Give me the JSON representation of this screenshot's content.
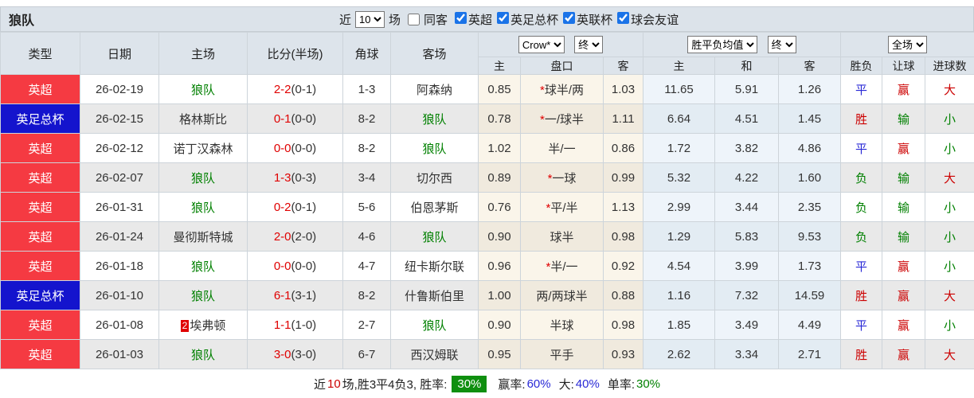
{
  "title": "狼队",
  "controls": {
    "recent_label": "近",
    "recent_value": "10",
    "matches_label": "场",
    "same_venue_label": "同客",
    "same_venue_checked": false,
    "leagues": [
      {
        "label": "英超",
        "checked": true
      },
      {
        "label": "英足总杯",
        "checked": true
      },
      {
        "label": "英联杯",
        "checked": true
      },
      {
        "label": "球会友谊",
        "checked": true
      }
    ]
  },
  "table": {
    "headers": {
      "type": "类型",
      "date": "日期",
      "home": "主场",
      "score": "比分(半场)",
      "corners": "角球",
      "away": "客场",
      "odds_company": "Crow*",
      "odds_final": "终",
      "odds_home": "主",
      "odds_handicap": "盘口",
      "odds_away": "客",
      "avg_select": "胜平负均值",
      "avg_final": "终",
      "avg_home": "主",
      "avg_draw": "和",
      "avg_away": "客",
      "scope_select": "全场",
      "result": "胜负",
      "handicap_result": "让球",
      "goals_result": "进球数"
    },
    "rows": [
      {
        "type": "英超",
        "type_color": "red",
        "date": "26-02-19",
        "home": {
          "name": "狼队",
          "wolves": true,
          "badge": ""
        },
        "score": {
          "main": "2-2",
          "half": "(0-1)"
        },
        "corners": "1-3",
        "away": {
          "name": "阿森纳",
          "wolves": false,
          "badge": ""
        },
        "odds_home": "0.85",
        "handicap": {
          "star": true,
          "text": "球半/两"
        },
        "odds_away": "1.03",
        "avg_home": "11.65",
        "avg_draw": "5.91",
        "avg_away": "1.26",
        "result": {
          "text": "平",
          "color": "blue"
        },
        "handicap_result": {
          "text": "赢",
          "color": "red"
        },
        "goals": {
          "text": "大",
          "color": "red"
        }
      },
      {
        "type": "英足总杯",
        "type_color": "blue",
        "date": "26-02-15",
        "home": {
          "name": "格林斯比",
          "wolves": false,
          "badge": ""
        },
        "score": {
          "main": "0-1",
          "half": "(0-0)"
        },
        "corners": "8-2",
        "away": {
          "name": "狼队",
          "wolves": true,
          "badge": ""
        },
        "odds_home": "0.78",
        "handicap": {
          "star": true,
          "text": "一/球半"
        },
        "odds_away": "1.11",
        "avg_home": "6.64",
        "avg_draw": "4.51",
        "avg_away": "1.45",
        "result": {
          "text": "胜",
          "color": "red"
        },
        "handicap_result": {
          "text": "输",
          "color": "green"
        },
        "goals": {
          "text": "小",
          "color": "green"
        }
      },
      {
        "type": "英超",
        "type_color": "red",
        "date": "26-02-12",
        "home": {
          "name": "诺丁汉森林",
          "wolves": false,
          "badge": ""
        },
        "score": {
          "main": "0-0",
          "half": "(0-0)"
        },
        "corners": "8-2",
        "away": {
          "name": "狼队",
          "wolves": true,
          "badge": ""
        },
        "odds_home": "1.02",
        "handicap": {
          "star": false,
          "text": "半/一"
        },
        "odds_away": "0.86",
        "avg_home": "1.72",
        "avg_draw": "3.82",
        "avg_away": "4.86",
        "result": {
          "text": "平",
          "color": "blue"
        },
        "handicap_result": {
          "text": "赢",
          "color": "red"
        },
        "goals": {
          "text": "小",
          "color": "green"
        }
      },
      {
        "type": "英超",
        "type_color": "red",
        "date": "26-02-07",
        "home": {
          "name": "狼队",
          "wolves": true,
          "badge": ""
        },
        "score": {
          "main": "1-3",
          "half": "(0-3)"
        },
        "corners": "3-4",
        "away": {
          "name": "切尔西",
          "wolves": false,
          "badge": ""
        },
        "odds_home": "0.89",
        "handicap": {
          "star": true,
          "text": "一球"
        },
        "odds_away": "0.99",
        "avg_home": "5.32",
        "avg_draw": "4.22",
        "avg_away": "1.60",
        "result": {
          "text": "负",
          "color": "green"
        },
        "handicap_result": {
          "text": "输",
          "color": "green"
        },
        "goals": {
          "text": "大",
          "color": "red"
        }
      },
      {
        "type": "英超",
        "type_color": "red",
        "date": "26-01-31",
        "home": {
          "name": "狼队",
          "wolves": true,
          "badge": ""
        },
        "score": {
          "main": "0-2",
          "half": "(0-1)"
        },
        "corners": "5-6",
        "away": {
          "name": "伯恩茅斯",
          "wolves": false,
          "badge": ""
        },
        "odds_home": "0.76",
        "handicap": {
          "star": true,
          "text": "平/半"
        },
        "odds_away": "1.13",
        "avg_home": "2.99",
        "avg_draw": "3.44",
        "avg_away": "2.35",
        "result": {
          "text": "负",
          "color": "green"
        },
        "handicap_result": {
          "text": "输",
          "color": "green"
        },
        "goals": {
          "text": "小",
          "color": "green"
        }
      },
      {
        "type": "英超",
        "type_color": "red",
        "date": "26-01-24",
        "home": {
          "name": "曼彻斯特城",
          "wolves": false,
          "badge": ""
        },
        "score": {
          "main": "2-0",
          "half": "(2-0)"
        },
        "corners": "4-6",
        "away": {
          "name": "狼队",
          "wolves": true,
          "badge": ""
        },
        "odds_home": "0.90",
        "handicap": {
          "star": false,
          "text": "球半"
        },
        "odds_away": "0.98",
        "avg_home": "1.29",
        "avg_draw": "5.83",
        "avg_away": "9.53",
        "result": {
          "text": "负",
          "color": "green"
        },
        "handicap_result": {
          "text": "输",
          "color": "green"
        },
        "goals": {
          "text": "小",
          "color": "green"
        }
      },
      {
        "type": "英超",
        "type_color": "red",
        "date": "26-01-18",
        "home": {
          "name": "狼队",
          "wolves": true,
          "badge": ""
        },
        "score": {
          "main": "0-0",
          "half": "(0-0)"
        },
        "corners": "4-7",
        "away": {
          "name": "纽卡斯尔联",
          "wolves": false,
          "badge": ""
        },
        "odds_home": "0.96",
        "handicap": {
          "star": true,
          "text": "半/一"
        },
        "odds_away": "0.92",
        "avg_home": "4.54",
        "avg_draw": "3.99",
        "avg_away": "1.73",
        "result": {
          "text": "平",
          "color": "blue"
        },
        "handicap_result": {
          "text": "赢",
          "color": "red"
        },
        "goals": {
          "text": "小",
          "color": "green"
        }
      },
      {
        "type": "英足总杯",
        "type_color": "blue",
        "date": "26-01-10",
        "home": {
          "name": "狼队",
          "wolves": true,
          "badge": ""
        },
        "score": {
          "main": "6-1",
          "half": "(3-1)"
        },
        "corners": "8-2",
        "away": {
          "name": "什鲁斯伯里",
          "wolves": false,
          "badge": ""
        },
        "odds_home": "1.00",
        "handicap": {
          "star": false,
          "text": "两/两球半"
        },
        "odds_away": "0.88",
        "avg_home": "1.16",
        "avg_draw": "7.32",
        "avg_away": "14.59",
        "result": {
          "text": "胜",
          "color": "red"
        },
        "handicap_result": {
          "text": "赢",
          "color": "red"
        },
        "goals": {
          "text": "大",
          "color": "red"
        }
      },
      {
        "type": "英超",
        "type_color": "red",
        "date": "26-01-08",
        "home": {
          "name": "埃弗顿",
          "wolves": false,
          "badge": "2"
        },
        "score": {
          "main": "1-1",
          "half": "(1-0)"
        },
        "corners": "2-7",
        "away": {
          "name": "狼队",
          "wolves": true,
          "badge": ""
        },
        "odds_home": "0.90",
        "handicap": {
          "star": false,
          "text": "半球"
        },
        "odds_away": "0.98",
        "avg_home": "1.85",
        "avg_draw": "3.49",
        "avg_away": "4.49",
        "result": {
          "text": "平",
          "color": "blue"
        },
        "handicap_result": {
          "text": "赢",
          "color": "red"
        },
        "goals": {
          "text": "小",
          "color": "green"
        }
      },
      {
        "type": "英超",
        "type_color": "red",
        "date": "26-01-03",
        "home": {
          "name": "狼队",
          "wolves": true,
          "badge": ""
        },
        "score": {
          "main": "3-0",
          "half": "(3-0)"
        },
        "corners": "6-7",
        "away": {
          "name": "西汉姆联",
          "wolves": false,
          "badge": ""
        },
        "odds_home": "0.95",
        "handicap": {
          "star": false,
          "text": "平手"
        },
        "odds_away": "0.93",
        "avg_home": "2.62",
        "avg_draw": "3.34",
        "avg_away": "2.71",
        "result": {
          "text": "胜",
          "color": "red"
        },
        "handicap_result": {
          "text": "赢",
          "color": "red"
        },
        "goals": {
          "text": "大",
          "color": "red"
        }
      }
    ]
  },
  "footer": {
    "prefix": "近",
    "count": "10",
    "summary": "场,胜3平4负3, 胜率:",
    "win_rate_badge": "30%",
    "handicap_label": "赢率:",
    "handicap_value": "60%",
    "big_label": "大:",
    "big_value": "40%",
    "single_label": "单率:",
    "single_value": "30%"
  }
}
